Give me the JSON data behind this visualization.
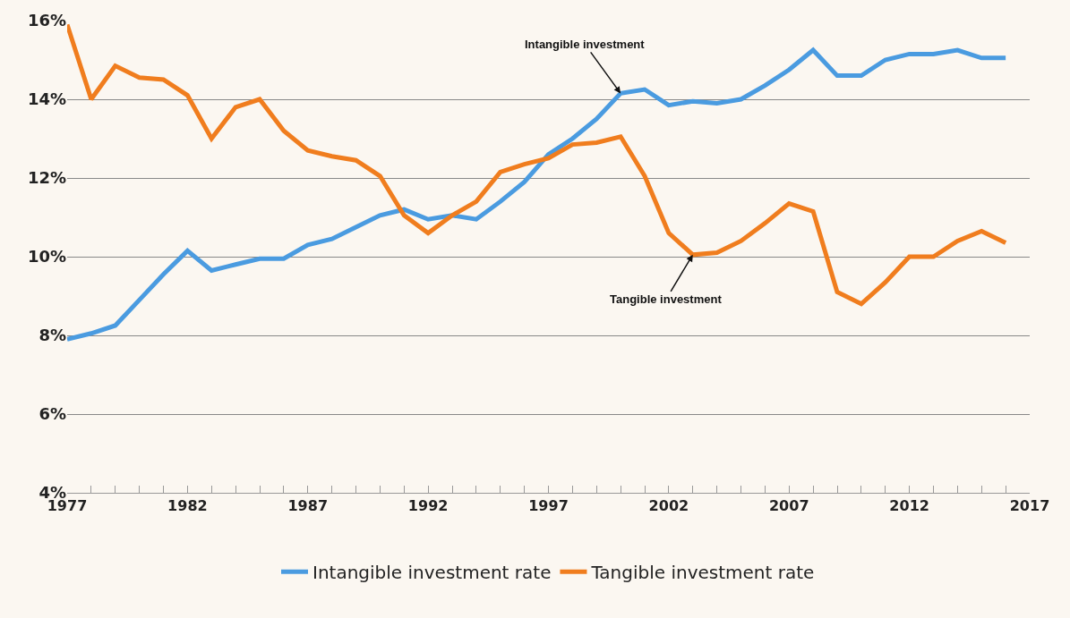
{
  "chart_data": {
    "type": "line",
    "x": [
      1977,
      1978,
      1979,
      1980,
      1981,
      1982,
      1983,
      1984,
      1985,
      1986,
      1987,
      1988,
      1989,
      1990,
      1991,
      1992,
      1993,
      1994,
      1995,
      1996,
      1997,
      1998,
      1999,
      2000,
      2001,
      2002,
      2003,
      2004,
      2005,
      2006,
      2007,
      2008,
      2009,
      2010,
      2011,
      2012,
      2013,
      2014,
      2015,
      2016
    ],
    "series": [
      {
        "name": "Intangible investment rate",
        "color": "#4a9be0",
        "values": [
          7.9,
          8.05,
          8.25,
          8.9,
          9.55,
          10.15,
          9.65,
          9.8,
          9.95,
          9.95,
          10.3,
          10.45,
          10.75,
          11.05,
          11.2,
          10.95,
          11.05,
          10.95,
          11.4,
          11.9,
          12.6,
          13.0,
          13.5,
          14.15,
          14.25,
          13.85,
          13.95,
          13.9,
          14.0,
          14.35,
          14.75,
          15.25,
          14.6,
          14.6,
          15.0,
          15.15,
          15.15,
          15.25,
          15.05,
          15.05
        ]
      },
      {
        "name": "Tangible investment rate",
        "color": "#f07d1e",
        "values": [
          15.9,
          14.0,
          14.85,
          14.55,
          14.5,
          14.1,
          13.0,
          13.8,
          14.0,
          13.2,
          12.7,
          12.55,
          12.45,
          12.05,
          11.05,
          10.6,
          11.05,
          11.4,
          12.15,
          12.35,
          12.5,
          12.85,
          12.9,
          13.05,
          12.05,
          10.6,
          10.05,
          10.1,
          10.4,
          10.85,
          11.35,
          11.15,
          9.1,
          8.8,
          9.35,
          10.0,
          10.0,
          10.4,
          10.65,
          10.35
        ]
      }
    ],
    "annotations": [
      {
        "text": "Intangible investment",
        "x": 2000,
        "y": 14.15
      },
      {
        "text": "Tangible investment",
        "x": 2003,
        "y": 10.05
      }
    ],
    "xlim": [
      1977,
      2017
    ],
    "xticks": [
      1977,
      {
        "value": 1978,
        "label": null
      },
      {
        "value": 1979,
        "label": null
      },
      {
        "value": 1980,
        "label": null
      },
      {
        "value": 1981,
        "label": null
      },
      1982,
      {
        "value": 1983,
        "label": null
      },
      {
        "value": 1984,
        "label": null
      },
      {
        "value": 1985,
        "label": null
      },
      {
        "value": 1986,
        "label": null
      },
      1987,
      {
        "value": 1988,
        "label": null
      },
      {
        "value": 1989,
        "label": null
      },
      {
        "value": 1990,
        "label": null
      },
      {
        "value": 1991,
        "label": null
      },
      1992,
      {
        "value": 1993,
        "label": null
      },
      {
        "value": 1994,
        "label": null
      },
      {
        "value": 1995,
        "label": null
      },
      {
        "value": 1996,
        "label": null
      },
      1997,
      {
        "value": 1998,
        "label": null
      },
      {
        "value": 1999,
        "label": null
      },
      {
        "value": 2000,
        "label": null
      },
      {
        "value": 2001,
        "label": null
      },
      2002,
      {
        "value": 2003,
        "label": null
      },
      {
        "value": 2004,
        "label": null
      },
      {
        "value": 2005,
        "label": null
      },
      {
        "value": 2006,
        "label": null
      },
      2007,
      {
        "value": 2008,
        "label": null
      },
      {
        "value": 2009,
        "label": null
      },
      {
        "value": 2010,
        "label": null
      },
      {
        "value": 2011,
        "label": null
      },
      2012,
      {
        "value": 2013,
        "label": null
      },
      {
        "value": 2014,
        "label": null
      },
      {
        "value": 2015,
        "label": null
      },
      {
        "value": 2016,
        "label": null
      },
      2017
    ],
    "ylim": [
      4,
      16
    ],
    "yticks": [
      {
        "value": 4,
        "label": "4%"
      },
      {
        "value": 6,
        "label": "6%"
      },
      {
        "value": 8,
        "label": "8%"
      },
      {
        "value": 10,
        "label": "10%"
      },
      {
        "value": 12,
        "label": "12%"
      },
      {
        "value": 14,
        "label": "14%"
      },
      {
        "value": 16,
        "label": "16%"
      }
    ],
    "grid": "y",
    "legend": "bottom",
    "marker": "none",
    "line_style": "solid"
  }
}
